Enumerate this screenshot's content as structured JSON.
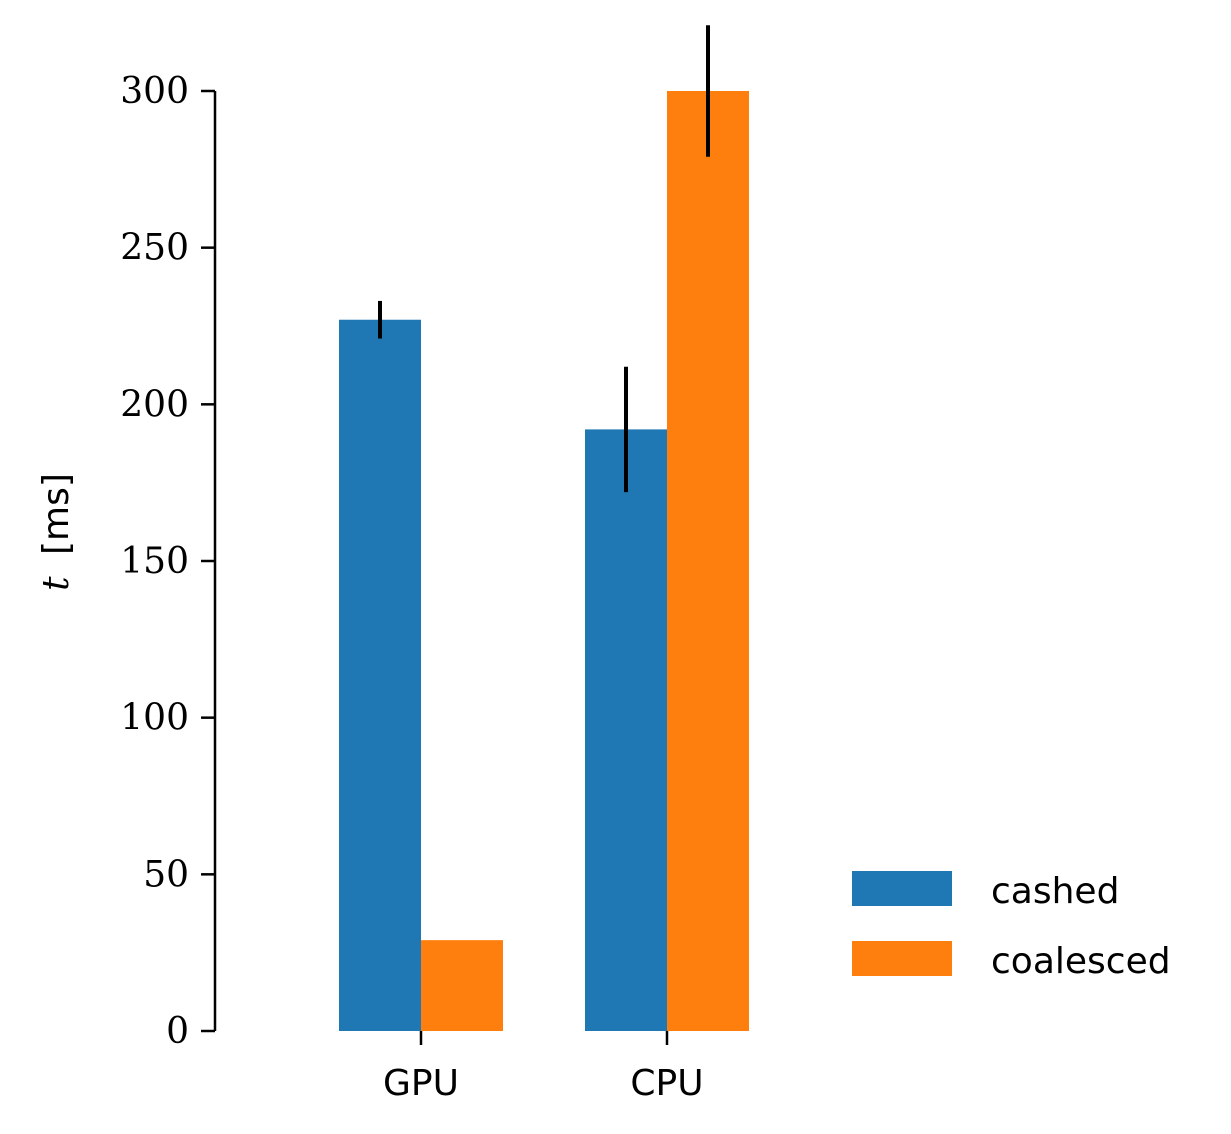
{
  "chart_data": {
    "type": "bar",
    "categories": [
      "GPU",
      "CPU"
    ],
    "series": [
      {
        "name": "cashed",
        "color": "#1f77b4",
        "values": [
          227,
          192
        ],
        "error": [
          6,
          20
        ]
      },
      {
        "name": "coalesced",
        "color": "#ff7f0e",
        "values": [
          29,
          300
        ],
        "error": [
          0,
          21
        ]
      }
    ],
    "ylabel_var": "t",
    "ylabel_unit": "[ms]",
    "ylim": [
      0,
      300
    ],
    "yticks": [
      0,
      50,
      100,
      150,
      200,
      250,
      300
    ],
    "grid": false,
    "legend_position": "lower-right"
  }
}
